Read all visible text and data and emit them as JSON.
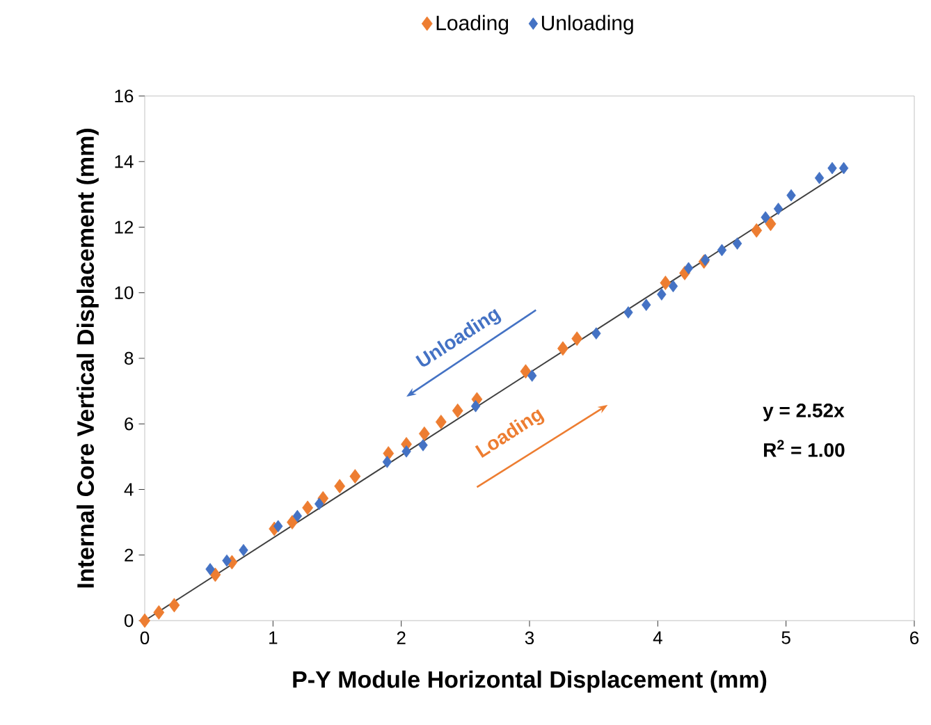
{
  "chart_data": {
    "type": "scatter",
    "xlabel": "P-Y Module Horizontal Displacement (mm)",
    "ylabel": "Internal Core Vertical Displacement (mm)",
    "xlim": [
      0,
      6
    ],
    "ylim": [
      0,
      16
    ],
    "xticks": [
      0,
      1,
      2,
      3,
      4,
      5,
      6
    ],
    "yticks": [
      0,
      2,
      4,
      6,
      8,
      10,
      12,
      14,
      16
    ],
    "legend": "top",
    "marker": "diamond",
    "series": [
      {
        "name": "Loading",
        "color": "#ed7d31",
        "x": [
          0,
          0.11,
          0.23,
          0.55,
          0.68,
          1.01,
          1.15,
          1.27,
          1.39,
          1.52,
          1.64,
          1.9,
          2.04,
          2.18,
          2.31,
          2.44,
          2.59,
          2.97,
          3.26,
          3.37,
          4.06,
          4.21,
          4.36,
          4.77,
          4.88
        ],
        "values": [
          0,
          0.25,
          0.47,
          1.4,
          1.78,
          2.8,
          3.0,
          3.44,
          3.73,
          4.1,
          4.4,
          5.1,
          5.38,
          5.7,
          6.06,
          6.4,
          6.75,
          7.6,
          8.3,
          8.6,
          10.3,
          10.6,
          10.95,
          11.9,
          12.1
        ]
      },
      {
        "name": "Unloading",
        "color": "#4472c4",
        "x": [
          5.45,
          5.36,
          5.26,
          5.04,
          4.94,
          4.84,
          4.62,
          4.5,
          4.37,
          4.24,
          4.12,
          4.03,
          3.91,
          3.77,
          3.52,
          3.02,
          2.58,
          2.17,
          2.04,
          1.89,
          1.36,
          1.19,
          1.04,
          0.77,
          0.64,
          0.51
        ],
        "values": [
          13.8,
          13.8,
          13.5,
          12.97,
          12.56,
          12.3,
          11.5,
          11.3,
          11.0,
          10.75,
          10.2,
          9.95,
          9.63,
          9.4,
          8.76,
          7.47,
          6.54,
          5.35,
          5.16,
          4.84,
          3.56,
          3.19,
          2.88,
          2.15,
          1.83,
          1.57
        ]
      },
      {
        "type": "line",
        "marker": "none",
        "color": "#404040",
        "x": [
          0,
          5.45
        ],
        "values": [
          0,
          13.73
        ]
      }
    ],
    "annotations": [
      "Unloading",
      "Loading",
      "y = 2.52x",
      "R$^{2}$ = 1.00"
    ]
  }
}
